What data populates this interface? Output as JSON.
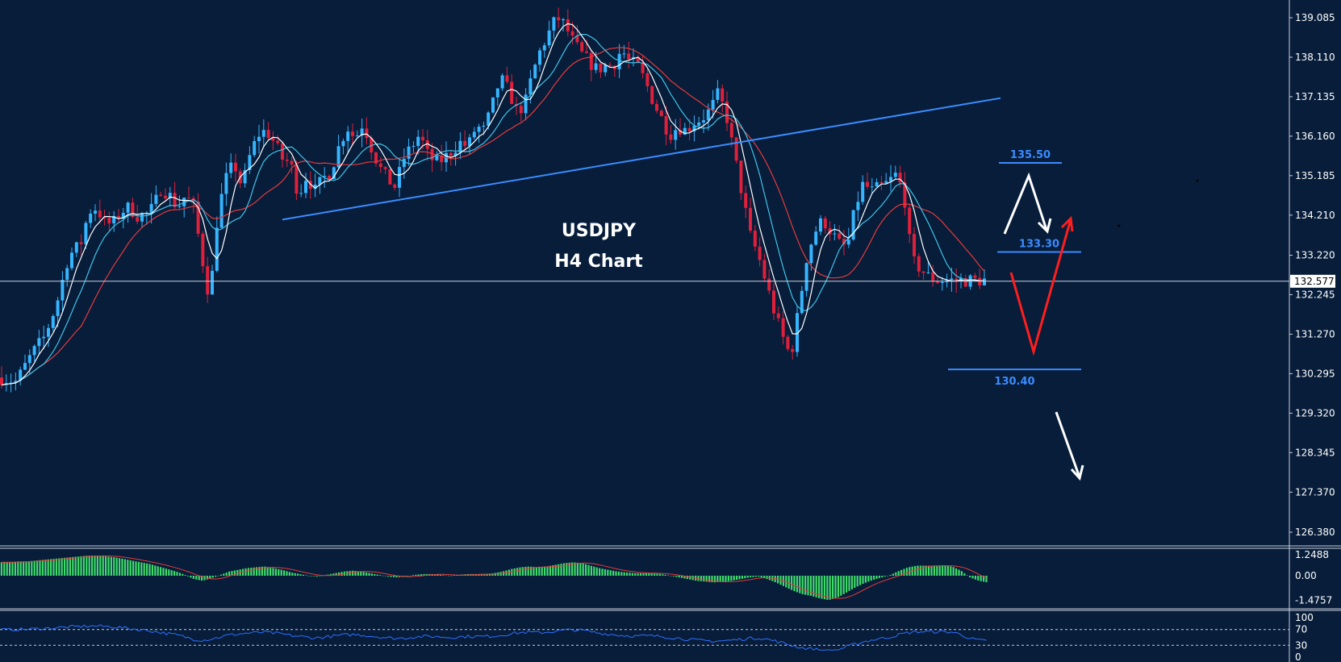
{
  "chart_data": {
    "type": "candlestick",
    "title": "USDJPY",
    "subtitle": "H4 Chart",
    "ylim": [
      125.9,
      139.5
    ],
    "y_ticks": [
      "139.085",
      "138.110",
      "137.135",
      "136.160",
      "135.185",
      "134.210",
      "133.220",
      "132.245",
      "131.270",
      "130.295",
      "129.320",
      "128.345",
      "127.370",
      "126.380"
    ],
    "current_price": "132.577",
    "levels": [
      {
        "label": "135.50",
        "value": 135.5
      },
      {
        "label": "133.30",
        "value": 133.3
      },
      {
        "label": "130.40",
        "value": 130.4
      }
    ],
    "trendlines": [
      {
        "name": "support-trendline",
        "from": 134.1,
        "to": 137.1
      }
    ],
    "path_x": [
      0,
      20,
      40,
      55,
      70,
      85,
      100,
      110,
      120,
      130,
      140,
      150,
      160,
      170,
      180,
      190,
      200,
      210,
      220,
      230,
      240,
      250,
      260,
      270,
      280,
      290,
      300,
      310,
      320,
      330,
      340,
      350,
      360,
      370,
      380,
      390,
      400,
      410,
      420,
      430,
      440,
      450,
      460,
      470,
      480,
      490,
      500,
      510,
      520,
      530,
      540,
      550,
      560,
      570,
      580,
      590,
      600,
      610,
      620,
      630,
      640,
      650,
      660,
      670,
      680,
      690,
      700,
      710,
      720,
      730,
      740,
      750,
      760,
      770,
      780,
      790,
      800,
      810,
      820,
      830,
      840,
      850,
      860,
      870,
      880,
      890,
      900,
      910,
      920,
      930,
      940,
      950,
      960,
      970,
      980,
      990,
      1000,
      1010,
      1020,
      1030,
      1040,
      1050,
      1060,
      1070,
      1080,
      1090,
      1100,
      1110,
      1120,
      1130,
      1140,
      1150,
      1160
    ],
    "path_y": [
      130.2,
      130.1,
      130.8,
      131.2,
      132.0,
      133.2,
      133.5,
      134.3,
      134.4,
      134.0,
      134.0,
      134.3,
      134.4,
      134.2,
      134.2,
      134.4,
      134.9,
      134.7,
      134.4,
      134.7,
      134.4,
      133.2,
      132.1,
      134.3,
      135.1,
      135.5,
      134.9,
      135.7,
      136.2,
      136.3,
      136.0,
      135.6,
      135.5,
      134.7,
      135.2,
      134.8,
      135.1,
      135.3,
      135.9,
      136.4,
      136.1,
      136.5,
      135.9,
      135.4,
      135.1,
      134.9,
      135.6,
      135.9,
      136.2,
      135.7,
      135.5,
      135.6,
      135.8,
      136.0,
      135.9,
      136.4,
      136.3,
      136.9,
      137.6,
      137.3,
      136.8,
      136.9,
      137.7,
      138.3,
      138.7,
      139.1,
      138.9,
      138.5,
      138.2,
      138.0,
      137.8,
      137.9,
      137.9,
      138.3,
      138.0,
      137.9,
      137.5,
      137.0,
      136.6,
      136.2,
      136.4,
      136.3,
      136.5,
      136.6,
      136.8,
      137.2,
      136.7,
      135.7,
      134.7,
      133.7,
      133.2,
      132.5,
      131.8,
      131.2,
      130.7,
      131.9,
      133.2,
      133.8,
      134.1,
      133.8,
      133.5,
      133.4,
      134.4,
      135.0,
      134.8,
      134.9,
      135.0,
      135.2,
      134.8,
      133.1,
      132.9,
      132.7,
      132.6
    ],
    "macd": {
      "ylim": [
        -1.4757,
        1.2488
      ],
      "ticks": [
        "1.2488",
        "0.00",
        "-1.4757"
      ],
      "hist": [
        0.8,
        0.8,
        0.85,
        0.85,
        0.9,
        0.95,
        1.0,
        1.05,
        1.1,
        1.15,
        1.2,
        1.2,
        1.15,
        1.1,
        1.0,
        0.9,
        0.8,
        0.7,
        0.55,
        0.4,
        0.25,
        0.05,
        -0.2,
        -0.3,
        -0.15,
        0.05,
        0.25,
        0.35,
        0.45,
        0.5,
        0.55,
        0.45,
        0.35,
        0.2,
        0.1,
        0.0,
        -0.05,
        0.05,
        0.15,
        0.25,
        0.3,
        0.25,
        0.15,
        0.05,
        -0.05,
        -0.1,
        -0.05,
        0.05,
        0.1,
        0.1,
        0.05,
        0.0,
        0.05,
        0.1,
        0.1,
        0.1,
        0.15,
        0.25,
        0.4,
        0.5,
        0.55,
        0.5,
        0.55,
        0.65,
        0.75,
        0.8,
        0.75,
        0.6,
        0.45,
        0.35,
        0.25,
        0.2,
        0.15,
        0.15,
        0.15,
        0.1,
        0.0,
        -0.1,
        -0.2,
        -0.3,
        -0.35,
        -0.4,
        -0.35,
        -0.3,
        -0.2,
        -0.1,
        -0.05,
        -0.2,
        -0.4,
        -0.65,
        -0.9,
        -1.1,
        -1.2,
        -1.35,
        -1.45,
        -1.3,
        -1.0,
        -0.7,
        -0.45,
        -0.25,
        -0.1,
        0.05,
        0.3,
        0.5,
        0.6,
        0.6,
        0.6,
        0.6,
        0.55,
        0.3,
        -0.1,
        -0.3,
        -0.4
      ]
    },
    "rsi": {
      "ylim": [
        0,
        100
      ],
      "ticks": [
        "100",
        "70",
        "30",
        "0"
      ],
      "levels": [
        70,
        30
      ]
    }
  },
  "colors": {
    "background": "#071d3a",
    "bull": "#36b5ff",
    "bear": "#e0203a",
    "ma_fast": "#ffffff",
    "ma_mid": "#3fc4e8",
    "ma_slow": "#e83a3a",
    "trendline": "#3b8cff",
    "hist": "#3ddc6a",
    "signal": "#e83a3a",
    "rsi": "#2f6fff",
    "arrow_white": "#ffffff",
    "arrow_red": "#ff1e1e"
  }
}
